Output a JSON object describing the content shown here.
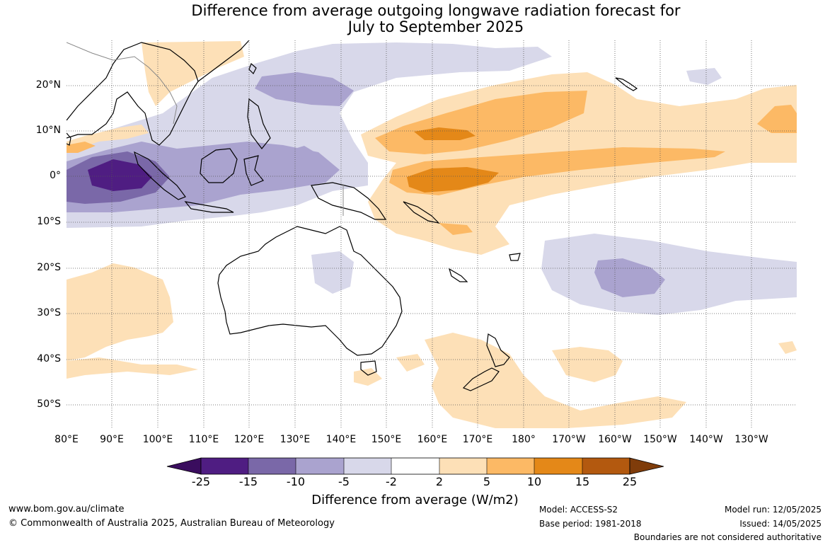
{
  "title": {
    "line1": "Difference from average outgoing longwave radiation forecast for",
    "line2": "July to September 2025"
  },
  "map": {
    "latitude_labels": [
      "20°N",
      "10°N",
      "0°",
      "10°S",
      "20°S",
      "30°S",
      "40°S",
      "50°S"
    ],
    "longitude_labels": [
      "80°E",
      "90°E",
      "100°E",
      "110°E",
      "120°E",
      "130°E",
      "140°E",
      "150°E",
      "160°E",
      "170°E",
      "180°",
      "170°W",
      "160°W",
      "150°W",
      "140°W",
      "130°W"
    ],
    "grid": true,
    "colors": {
      "neg25": "#3a0d5e",
      "neg15": "#4f1d82",
      "neg10": "#7a68a8",
      "neg5": "#aaa3cf",
      "neg2": "#d8d8ea",
      "neutral": "#ffffff",
      "pos2": "#fde0b7",
      "pos5": "#fcb965",
      "pos10": "#e48818",
      "pos15": "#b3590f",
      "pos25": "#7f3c0a",
      "coast": "#000000",
      "border": "#888888",
      "grid": "#555555"
    }
  },
  "colorbar": {
    "ticks": [
      "-25",
      "-15",
      "-10",
      "-5",
      "-2",
      "2",
      "5",
      "10",
      "15",
      "25"
    ],
    "label": "Difference from average (W/m2)"
  },
  "footer": {
    "website": "www.bom.gov.au/climate",
    "copyright": "© Commonwealth of Australia 2025, Australian Bureau of Meteorology",
    "model": "Model: ACCESS-S2",
    "base_period": "Base period: 1981-2018",
    "model_run": "Model run: 12/05/2025",
    "issued": "Issued: 14/05/2025",
    "disclaimer": "Boundaries are not considered authoritative"
  }
}
